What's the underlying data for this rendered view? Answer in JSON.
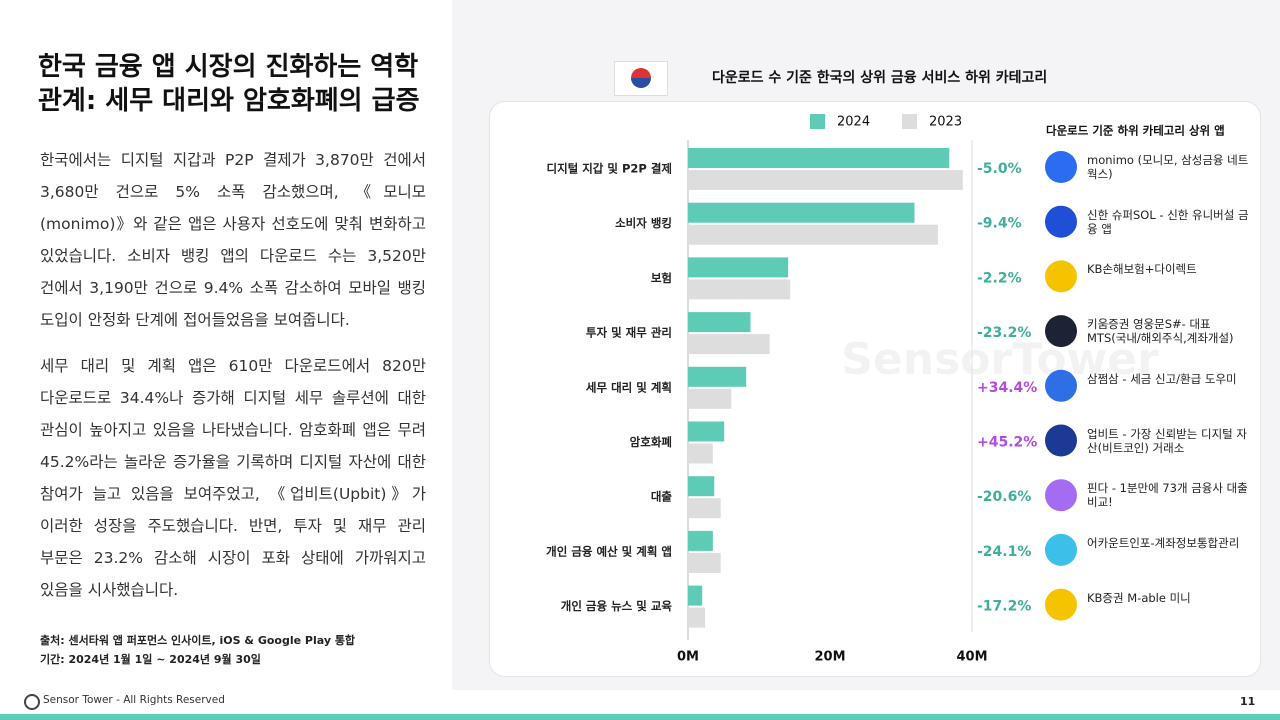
{
  "slide": {
    "title": "한국 금융 앱 시장의 진화하는 역학 관계: 세무 대리와 암호화폐의 급증",
    "paragraphs": [
      "한국에서는 디지털 지갑과 P2P 결제가 3,870만 건에서 3,680만 건으로 5% 소폭 감소했으며, 《모니모(monimo)》와 같은 앱은 사용자 선호도에 맞춰 변화하고 있었습니다. 소비자 뱅킹 앱의 다운로드 수는 3,520만 건에서 3,190만 건으로 9.4% 소폭 감소하여 모바일 뱅킹 도입이 안정화 단계에 접어들었음을 보여줍니다.",
      "세무 대리 및 계획 앱은 610만 다운로드에서 820만 다운로드로 34.4%나 증가해 디지털 세무 솔루션에 대한 관심이 높아지고 있음을 나타냈습니다. 암호화폐 앱은 무려 45.2%라는 놀라운 증가율을 기록하며 디지털 자산에 대한 참여가 늘고 있음을 보여주었고, 《업비트(Upbit)》가 이러한 성장을 주도했습니다. 반면, 투자 및 재무 관리 부문은 23.2% 감소해 시장이 포화 상태에 가까워지고 있음을 시사했습니다."
    ],
    "source": "출처: 센서타워 앱 퍼포먼스 인사이트, iOS & Google Play 통합",
    "period": "기간: 2024년 1월 1일 ~ 2024년 9월 30일",
    "footer": "Sensor Tower - All Rights Reserved",
    "page_number": "11",
    "watermark": "SensorTower"
  },
  "chart_data": {
    "type": "hbar",
    "title": "다운로드 수 기준 한국의 상위 금융 서비스 하위 카테고리",
    "categories": [
      "디지털 지갑 및 P2P 결제",
      "소비자 뱅킹",
      "보험",
      "투자 및 재무 관리",
      "세무 대리 및 계획",
      "암호화폐",
      "대출",
      "개인 금융 예산 및 계획 앱",
      "개인 금융 뉴스 및 교육"
    ],
    "series": [
      {
        "name": "2024",
        "color": "#5ecbb6",
        "values": [
          36.8,
          31.9,
          14.1,
          8.8,
          8.2,
          5.1,
          3.7,
          3.5,
          2.0
        ]
      },
      {
        "name": "2023",
        "color": "#dddddd",
        "values": [
          38.7,
          35.2,
          14.4,
          11.5,
          6.1,
          3.5,
          4.6,
          4.6,
          2.4
        ]
      }
    ],
    "changes": [
      -5.0,
      -9.4,
      -2.2,
      -23.2,
      34.4,
      45.2,
      -20.6,
      -24.1,
      -17.2
    ],
    "change_labels": [
      "-5.0%",
      "-9.4%",
      "-2.2%",
      "-23.2%",
      "+34.4%",
      "+45.2%",
      "-20.6%",
      "-24.1%",
      "-17.2%"
    ],
    "xlim": [
      0,
      40
    ],
    "xticks": [
      {
        "value": 0,
        "label": "0M"
      },
      {
        "value": 20,
        "label": "20M"
      },
      {
        "value": 40,
        "label": "40M"
      }
    ],
    "top_apps_title": "다운로드 기준 하위 카테고리 상위 앱",
    "top_apps": [
      "monimo (모니모, 삼성금융 네트웍스)",
      "신한 슈퍼SOL - 신한 유니버설 금융 앱",
      "KB손해보험+다이렉트",
      "키움증권 영웅문S#- 대표 MTS(국내/해외주식,계좌개설)",
      "삼쩜삼 - 세금 신고/환급 도우미",
      "업비트 - 가장 신뢰받는 디지털 자산(비트코인) 거래소",
      "핀다 - 1분만에 73개 금융사 대출 비교!",
      "어카운트인포-계좌정보통합관리",
      "KB증권 M-able 미니"
    ]
  }
}
